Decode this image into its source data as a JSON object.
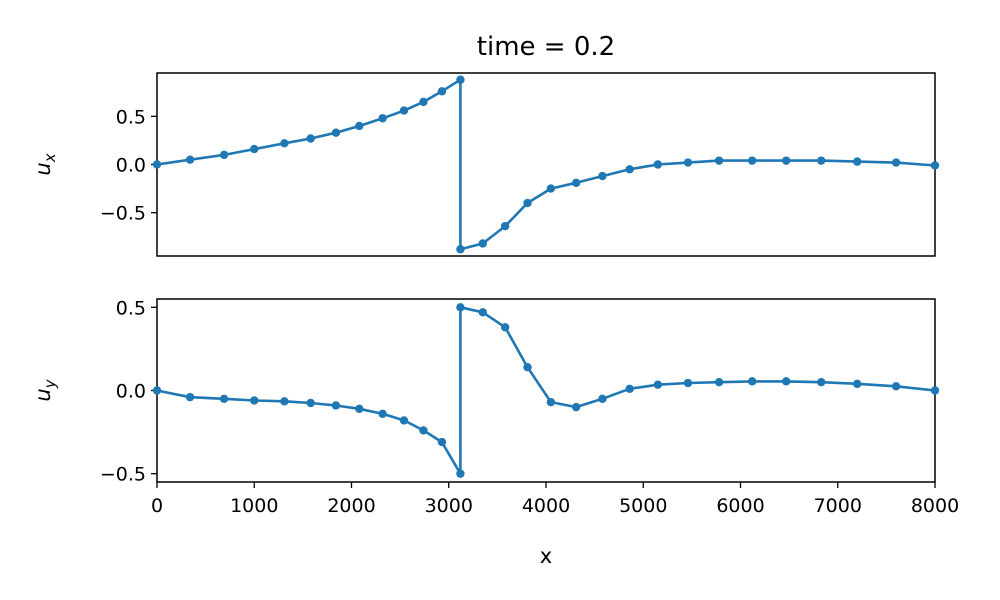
{
  "figure": {
    "title": "time = 0.2"
  },
  "chart_data": [
    {
      "type": "line",
      "title": "time = 0.2",
      "xlabel": "",
      "ylabel_base": "u",
      "ylabel_sub": "x",
      "xlim": [
        0,
        8000
      ],
      "ylim": [
        -0.95,
        0.95
      ],
      "yticks": [
        0.5,
        0.0,
        -0.5
      ],
      "ytick_labels": [
        "0.5",
        "0.0",
        "−0.5"
      ],
      "show_xticks": false,
      "grid": false,
      "color": "#1f77b4",
      "series": [
        {
          "x": [
            0,
            340,
            690,
            1000,
            1310,
            1580,
            1840,
            2080,
            2320,
            2540,
            2740,
            2930,
            3120,
            3120,
            3350,
            3580,
            3810,
            4050,
            4310,
            4580,
            4860,
            5150,
            5460,
            5780,
            6120,
            6470,
            6830,
            7200,
            7600,
            8000
          ],
          "y": [
            0.0,
            0.05,
            0.1,
            0.16,
            0.22,
            0.27,
            0.33,
            0.4,
            0.48,
            0.56,
            0.65,
            0.76,
            0.88,
            -0.88,
            -0.82,
            -0.64,
            -0.4,
            -0.25,
            -0.19,
            -0.12,
            -0.05,
            0.0,
            0.02,
            0.04,
            0.04,
            0.04,
            0.04,
            0.03,
            0.02,
            -0.01
          ]
        }
      ]
    },
    {
      "type": "line",
      "xlabel": "x",
      "ylabel_base": "u",
      "ylabel_sub": "y",
      "xlim": [
        0,
        8000
      ],
      "ylim": [
        -0.55,
        0.55
      ],
      "xticks": [
        0,
        1000,
        2000,
        3000,
        4000,
        5000,
        6000,
        7000,
        8000
      ],
      "xtick_labels": [
        "0",
        "1000",
        "2000",
        "3000",
        "4000",
        "5000",
        "6000",
        "7000",
        "8000"
      ],
      "yticks": [
        0.5,
        0.0,
        -0.5
      ],
      "ytick_labels": [
        "0.5",
        "0.0",
        "−0.5"
      ],
      "show_xticks": true,
      "grid": false,
      "color": "#1f77b4",
      "series": [
        {
          "x": [
            0,
            340,
            690,
            1000,
            1310,
            1580,
            1840,
            2080,
            2320,
            2540,
            2740,
            2930,
            3120,
            3120,
            3350,
            3580,
            3810,
            4050,
            4310,
            4580,
            4860,
            5150,
            5460,
            5780,
            6120,
            6470,
            6830,
            7200,
            7600,
            8000
          ],
          "y": [
            0.0,
            -0.04,
            -0.05,
            -0.06,
            -0.065,
            -0.075,
            -0.09,
            -0.11,
            -0.14,
            -0.18,
            -0.24,
            -0.31,
            -0.5,
            0.5,
            0.47,
            0.38,
            0.14,
            -0.07,
            -0.1,
            -0.05,
            0.01,
            0.035,
            0.045,
            0.05,
            0.055,
            0.055,
            0.05,
            0.04,
            0.025,
            0.0
          ]
        }
      ]
    }
  ]
}
